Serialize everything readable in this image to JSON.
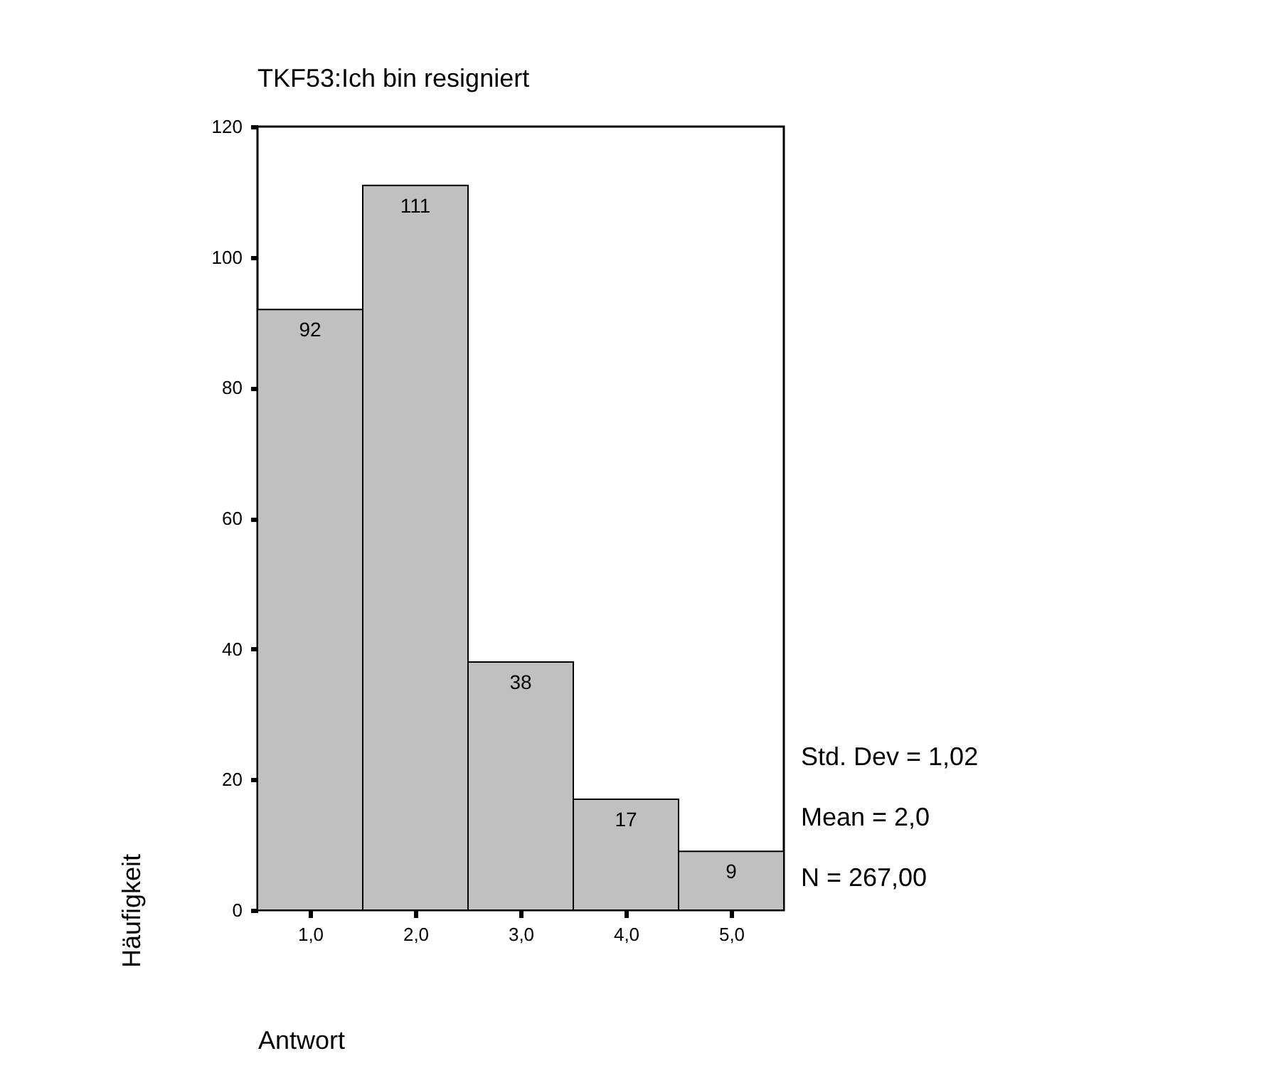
{
  "chart_data": {
    "type": "histogram",
    "title": "TKF53:Ich bin resigniert",
    "xlabel": "Antwort",
    "ylabel": "Häufigkeit",
    "bins": [
      0.5,
      1.5,
      2.5,
      3.5,
      4.5,
      5.5
    ],
    "values": [
      92,
      111,
      38,
      17,
      9
    ],
    "color": "#c0c0c0",
    "xlim": [
      0.5,
      5.5
    ],
    "xticks": [
      {
        "value": 1,
        "label": "1,0"
      },
      {
        "value": 2,
        "label": "2,0"
      },
      {
        "value": 3,
        "label": "3,0"
      },
      {
        "value": 4,
        "label": "4,0"
      },
      {
        "value": 5,
        "label": "5,0"
      }
    ],
    "ylim": [
      0,
      120
    ],
    "yticks": [
      0,
      20,
      40,
      60,
      80,
      100,
      120
    ],
    "grid": false,
    "data_labels": true,
    "annotations": [
      "Std. Dev = 1,02",
      "Mean = 2,0",
      "N = 267,00"
    ]
  }
}
